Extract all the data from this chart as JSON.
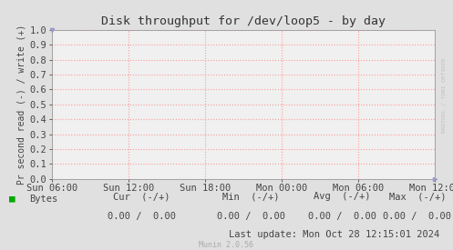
{
  "title": "Disk throughput for /dev/loop5 - by day",
  "ylabel": "Pr second read (-) / write (+)",
  "ylim": [
    0.0,
    1.0
  ],
  "yticks": [
    0.0,
    0.1,
    0.2,
    0.3,
    0.4,
    0.5,
    0.6,
    0.7,
    0.8,
    0.9,
    1.0
  ],
  "xtick_labels": [
    "Sun 06:00",
    "Sun 12:00",
    "Sun 18:00",
    "Mon 00:00",
    "Mon 06:00",
    "Mon 12:00"
  ],
  "bg_color": "#e0e0e0",
  "plot_bg_color": "#f0f0f0",
  "grid_color": "#ff9999",
  "title_color": "#333333",
  "axis_color": "#444444",
  "tick_color": "#444444",
  "legend_color": "#00aa00",
  "footer_bytes": "Bytes",
  "footer_cur": "Cur  (-/+)",
  "footer_min": "Min  (-/+)",
  "footer_avg": "Avg  (-/+)",
  "footer_max": "Max  (-/+)",
  "footer_cur_val": "0.00 /  0.00",
  "footer_min_val": "0.00 /  0.00",
  "footer_avg_val": "0.00 /  0.00",
  "footer_max_val": "0.00 /  0.00",
  "last_update": "Last update: Mon Oct 28 12:15:01 2024",
  "munin_version": "Munin 2.0.56",
  "watermark": "RRDTOOL / TOBI OETIKER",
  "border_color": "#999999",
  "arrow_color": "#9999cc"
}
